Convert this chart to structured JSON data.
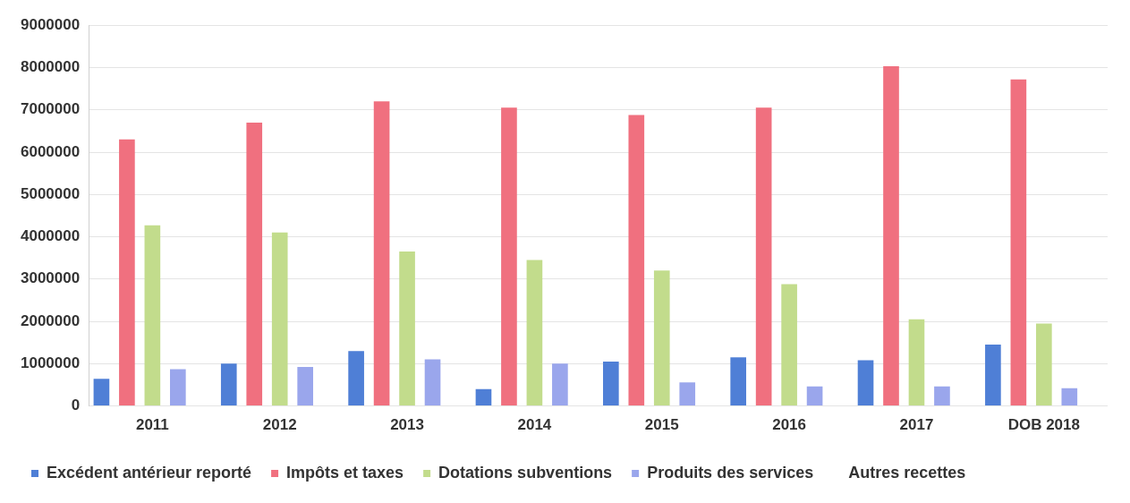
{
  "chart_data": {
    "type": "bar",
    "categories": [
      "2011",
      "2012",
      "2013",
      "2014",
      "2015",
      "2016",
      "2017",
      "DOB 2018"
    ],
    "series": [
      {
        "name": "Excédent antérieur reporté",
        "color": "#4f7fd6",
        "values": [
          640000,
          1000000,
          1300000,
          400000,
          1050000,
          1150000,
          1080000,
          1450000
        ]
      },
      {
        "name": "Impôts et taxes",
        "color": "#f0707f",
        "values": [
          6300000,
          6700000,
          7200000,
          7050000,
          6880000,
          7050000,
          8030000,
          7720000
        ]
      },
      {
        "name": "Dotations subventions",
        "color": "#c2dc8c",
        "values": [
          4270000,
          4100000,
          3650000,
          3450000,
          3200000,
          2880000,
          2050000,
          1950000
        ]
      },
      {
        "name": "Produits des services",
        "color": "#9aa6ec",
        "values": [
          870000,
          920000,
          1100000,
          1000000,
          560000,
          460000,
          460000,
          420000
        ]
      },
      {
        "name": "Autres recettes",
        "values": [
          null,
          null,
          null,
          null,
          null,
          null,
          null,
          null
        ]
      }
    ],
    "ylim": [
      0,
      9000000
    ],
    "yticks": [
      0,
      1000000,
      2000000,
      3000000,
      4000000,
      5000000,
      6000000,
      7000000,
      8000000,
      9000000
    ],
    "grid": "y",
    "legend": "bottom"
  }
}
